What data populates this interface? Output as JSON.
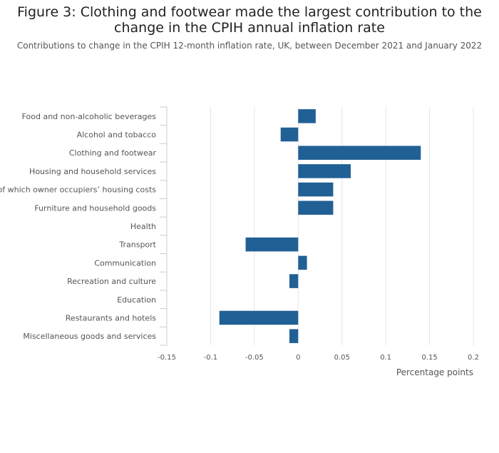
{
  "chart_data": {
    "type": "bar",
    "orientation": "horizontal",
    "title": "Figure 3: Clothing and footwear made the largest contribution to the change in the CPIH annual inflation rate",
    "subtitle": "Contributions to change in the CPIH 12-month inflation rate, UK, between December 2021 and January 2022",
    "xlabel": "Percentage points",
    "ylabel": "",
    "categories": [
      "Food and non-alcoholic beverages",
      "Alcohol and tobacco",
      "Clothing and footwear",
      "Housing and household services",
      "of which owner occupiers’ housing costs",
      "Furniture and household goods",
      "Health",
      "Transport",
      "Communication",
      "Recreation and culture",
      "Education",
      "Restaurants and hotels",
      "Miscellaneous goods and services"
    ],
    "values": [
      0.02,
      -0.02,
      0.14,
      0.06,
      0.04,
      0.04,
      0,
      -0.06,
      0.01,
      -0.01,
      0,
      -0.09,
      -0.01
    ],
    "xlim": [
      -0.15,
      0.2
    ],
    "xticks": [
      -0.15,
      -0.1,
      -0.05,
      0,
      0.05,
      0.1,
      0.15,
      0.2
    ],
    "xtick_labels": [
      "-0.15",
      "-0.1",
      "-0.05",
      "0",
      "0.05",
      "0.1",
      "0.15",
      "0.2"
    ],
    "grid": true,
    "legend": "none",
    "bar_color": "#206095",
    "grid_color": "#e5e5e5"
  }
}
